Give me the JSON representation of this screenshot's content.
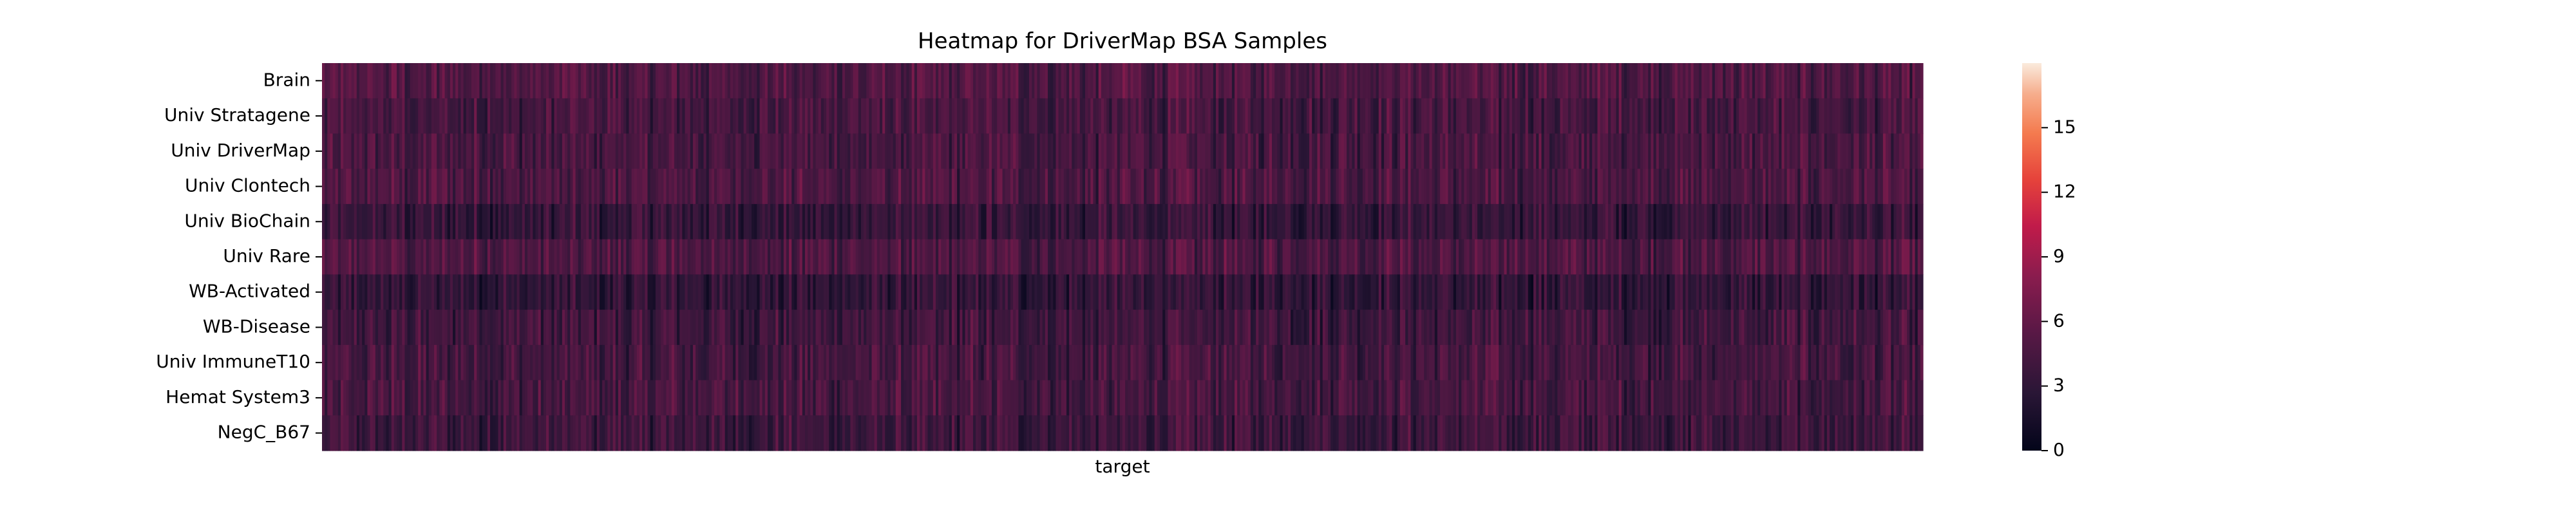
{
  "chart_data": {
    "type": "heatmap",
    "title": "Heatmap for DriverMap BSA Samples",
    "xlabel": "target",
    "ylabel": "",
    "rows": [
      {
        "label": "Brain",
        "mean": 4.9
      },
      {
        "label": "Univ Stratagene",
        "mean": 4.3
      },
      {
        "label": "Univ DriverMap",
        "mean": 4.4
      },
      {
        "label": "Univ Clontech",
        "mean": 4.6
      },
      {
        "label": "Univ BioChain",
        "mean": 3.3
      },
      {
        "label": "Univ Rare",
        "mean": 4.8
      },
      {
        "label": "WB-Activated",
        "mean": 3.1
      },
      {
        "label": "WB-Disease",
        "mean": 3.9
      },
      {
        "label": "Univ ImmuneT10",
        "mean": 4.2
      },
      {
        "label": "Hemat System3",
        "mean": 4.3
      },
      {
        "label": "NegC_B67",
        "mean": 3.8
      }
    ],
    "value_range": [
      0,
      18
    ],
    "colorbar": {
      "ticks": [
        0,
        3,
        6,
        9,
        12,
        15
      ],
      "colormap": "rocket"
    },
    "x_ticks_shown": false,
    "grid": false,
    "legend": "colorbar-right"
  }
}
